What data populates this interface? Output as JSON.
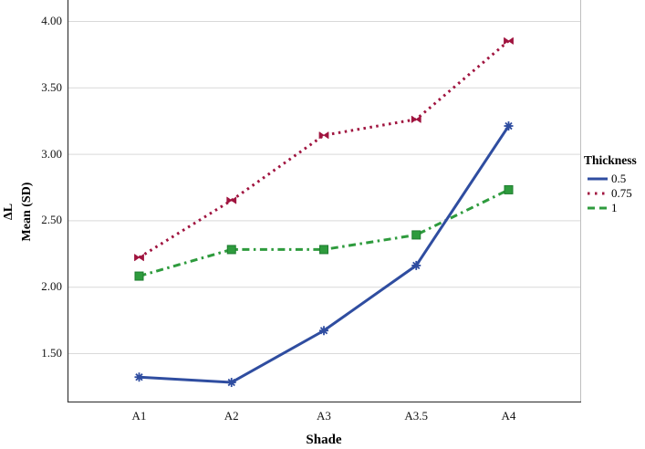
{
  "chart_data": {
    "type": "line",
    "title": "",
    "xlabel": "Shade",
    "ylabel": "ΔL Mean (SD)",
    "ylabel_lines": [
      "ΔL",
      "Mean (SD)"
    ],
    "categories": [
      "A1",
      "A2",
      "A3",
      "A3.5",
      "A4"
    ],
    "y_ticks": [
      "4.00",
      "3.50",
      "3.00",
      "2.50",
      "2.00",
      "1.50"
    ],
    "y_tick_values": [
      4.0,
      3.5,
      3.0,
      2.5,
      2.0,
      1.5
    ],
    "ylim_visible": [
      1.12,
      4.16
    ],
    "grid": "horizontal",
    "legend_title": "Thickness",
    "legend_position": "right",
    "series": [
      {
        "name": "0.5",
        "color": "#2F4DA0",
        "style": "solid",
        "marker": "asterisk",
        "values": [
          1.32,
          1.28,
          1.67,
          2.16,
          3.21
        ]
      },
      {
        "name": "0.75",
        "color": "#A0143F",
        "style": "dotted",
        "marker": "bowtie",
        "values": [
          2.22,
          2.65,
          3.14,
          3.26,
          3.85
        ]
      },
      {
        "name": "1",
        "color": "#2E9B3D",
        "style": "dashdot",
        "marker": "square",
        "values": [
          2.08,
          2.28,
          2.28,
          2.39,
          2.73
        ]
      }
    ],
    "colors": {
      "gridline": "#d9d9d9",
      "axis": "#404040",
      "plot_border_right": "#bfbfbf",
      "square_marker_edge": "#1E7C2F"
    }
  }
}
